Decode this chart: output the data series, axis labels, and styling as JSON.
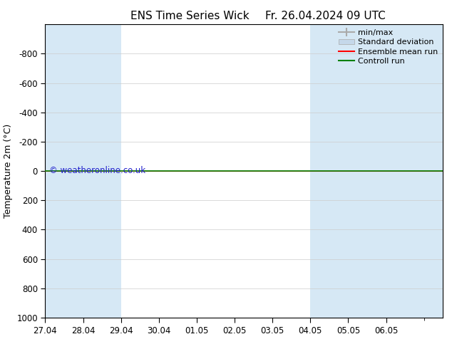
{
  "title_left": "ENS Time Series Wick",
  "title_right": "Fr. 26.04.2024 09 UTC",
  "ylabel": "Temperature 2m (°C)",
  "ylim": [
    -1000,
    1000
  ],
  "yticks": [
    -800,
    -600,
    -400,
    -200,
    0,
    200,
    400,
    600,
    800,
    1000
  ],
  "xtick_labels": [
    "27.04",
    "28.04",
    "29.04",
    "30.04",
    "01.05",
    "02.05",
    "03.05",
    "04.05",
    "05.05",
    "06.05"
  ],
  "xtick_offsets": [
    0,
    1,
    2,
    3,
    4,
    5,
    6,
    7,
    8,
    9
  ],
  "total_days": 10.5,
  "shaded_regions": [
    [
      0,
      1
    ],
    [
      1,
      2
    ],
    [
      7,
      8
    ],
    [
      8,
      9
    ],
    [
      9,
      10.5
    ]
  ],
  "shaded_color": "#d6e8f5",
  "background_color": "#ffffff",
  "watermark": "© weatheronline.co.uk",
  "watermark_color": "#2222cc",
  "control_run_color": "#008000",
  "ensemble_mean_color": "#ff0000",
  "minmax_color": "#aaaaaa",
  "std_color": "#c5d8ea",
  "legend_entries": [
    "min/max",
    "Standard deviation",
    "Ensemble mean run",
    "Controll run"
  ],
  "title_fontsize": 11,
  "tick_fontsize": 8.5,
  "ylabel_fontsize": 9,
  "legend_fontsize": 8
}
